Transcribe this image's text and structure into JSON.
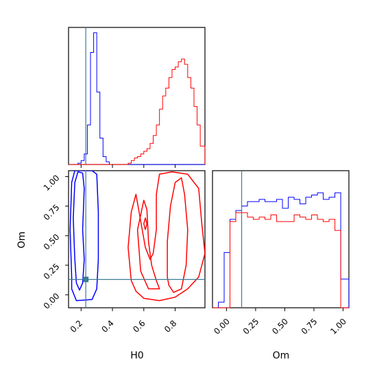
{
  "chart_data": {
    "type": "corner",
    "parameters": [
      "H0",
      "Om"
    ],
    "axis_labels": {
      "H0": "H0",
      "Om": "Om"
    },
    "truth": {
      "H0": 0.23,
      "Om": 0.13,
      "color": "#3b7b96"
    },
    "series": [
      {
        "color": "#0000ff"
      },
      {
        "color": "#ff0000"
      }
    ],
    "panels": [
      {
        "id": "hist-H0",
        "type": "histogram",
        "xlim": [
          0.12,
          0.99
        ],
        "x_ticks": [
          0.2,
          0.4,
          0.6,
          0.8
        ],
        "bin_edges": [
          0.12,
          0.14,
          0.16,
          0.18,
          0.2,
          0.22,
          0.24,
          0.26,
          0.28,
          0.3,
          0.32,
          0.34,
          0.36,
          0.38,
          0.4,
          0.42,
          0.44,
          0.46,
          0.48,
          0.5,
          0.52,
          0.54,
          0.56,
          0.58,
          0.6,
          0.62,
          0.64,
          0.66,
          0.68,
          0.7,
          0.72,
          0.74,
          0.76,
          0.78,
          0.8,
          0.82,
          0.84,
          0.86,
          0.88,
          0.9,
          0.92,
          0.94,
          0.96,
          0.98,
          0.99
        ],
        "counts": [
          [
            0,
            0,
            0,
            1,
            3,
            8,
            30,
            85,
            100,
            55,
            20,
            6,
            2,
            0,
            0,
            0,
            0,
            0,
            0,
            0,
            0,
            0,
            0,
            0,
            0,
            0,
            0,
            0,
            0,
            0,
            0,
            0,
            0,
            0,
            0,
            0,
            0,
            0,
            0,
            0,
            0,
            0,
            0,
            0
          ],
          [
            0,
            0,
            0,
            0,
            0,
            0,
            0,
            0,
            0,
            0,
            0,
            0,
            0,
            0,
            0,
            0,
            0,
            0,
            0,
            1,
            3,
            5,
            6,
            8,
            10,
            12,
            16,
            22,
            30,
            42,
            52,
            58,
            66,
            72,
            74,
            78,
            80,
            76,
            66,
            58,
            44,
            30,
            14,
            14
          ]
        ],
        "ymax": 104
      },
      {
        "id": "contour-H0-Om",
        "type": "contour",
        "xlim": [
          0.12,
          0.99
        ],
        "ylim": [
          -0.11,
          1.05
        ],
        "x_ticks": [
          0.2,
          0.4,
          0.6,
          0.8
        ],
        "y_ticks": [
          0.0,
          0.25,
          0.5,
          0.75,
          1.0
        ],
        "contours": [
          {
            "series": 0,
            "points": [
              [
                0.16,
                0.3
              ],
              [
                0.15,
                0.65
              ],
              [
                0.16,
                0.95
              ],
              [
                0.18,
                1.04
              ],
              [
                0.21,
                1.03
              ],
              [
                0.22,
                0.9
              ],
              [
                0.21,
                0.55
              ],
              [
                0.22,
                0.3
              ],
              [
                0.21,
                0.1
              ],
              [
                0.19,
                0.04
              ],
              [
                0.17,
                0.1
              ],
              [
                0.16,
                0.3
              ]
            ]
          },
          {
            "series": 0,
            "points": [
              [
                0.14,
                0.15
              ],
              [
                0.13,
                0.55
              ],
              [
                0.14,
                0.95
              ],
              [
                0.16,
                1.05
              ],
              [
                0.27,
                1.05
              ],
              [
                0.3,
                1.02
              ],
              [
                0.31,
                0.7
              ],
              [
                0.31,
                0.3
              ],
              [
                0.3,
                0.05
              ],
              [
                0.27,
                -0.04
              ],
              [
                0.17,
                -0.05
              ],
              [
                0.14,
                0.05
              ],
              [
                0.14,
                0.15
              ]
            ]
          },
          {
            "series": 1,
            "points": [
              [
                0.58,
                0.2
              ],
              [
                0.56,
                0.55
              ],
              [
                0.6,
                0.8
              ],
              [
                0.62,
                0.72
              ],
              [
                0.63,
                0.45
              ],
              [
                0.65,
                0.25
              ],
              [
                0.68,
                0.12
              ],
              [
                0.7,
                0.05
              ],
              [
                0.63,
                0.05
              ],
              [
                0.58,
                0.2
              ]
            ]
          },
          {
            "series": 1,
            "points": [
              [
                0.75,
                0.15
              ],
              [
                0.75,
                0.45
              ],
              [
                0.77,
                0.75
              ],
              [
                0.8,
                0.95
              ],
              [
                0.84,
                0.99
              ],
              [
                0.86,
                0.85
              ],
              [
                0.88,
                0.55
              ],
              [
                0.87,
                0.25
              ],
              [
                0.84,
                0.05
              ],
              [
                0.79,
                0.02
              ],
              [
                0.76,
                0.08
              ],
              [
                0.75,
                0.15
              ]
            ]
          },
          {
            "series": 1,
            "points": [
              [
                0.52,
                0.12
              ],
              [
                0.5,
                0.4
              ],
              [
                0.52,
                0.7
              ],
              [
                0.55,
                0.85
              ],
              [
                0.57,
                0.7
              ],
              [
                0.59,
                0.55
              ],
              [
                0.61,
                0.4
              ],
              [
                0.64,
                0.3
              ],
              [
                0.66,
                0.35
              ],
              [
                0.68,
                0.55
              ],
              [
                0.68,
                0.85
              ],
              [
                0.7,
                1.02
              ],
              [
                0.78,
                1.04
              ],
              [
                0.88,
                1.02
              ],
              [
                0.95,
                0.9
              ],
              [
                0.97,
                0.6
              ],
              [
                0.99,
                0.35
              ],
              [
                0.95,
                0.15
              ],
              [
                0.88,
                0.05
              ],
              [
                0.8,
                -0.02
              ],
              [
                0.7,
                -0.05
              ],
              [
                0.6,
                -0.03
              ],
              [
                0.55,
                0.03
              ],
              [
                0.52,
                0.12
              ]
            ]
          },
          {
            "series": 1,
            "points": [
              [
                0.61,
                0.55
              ],
              [
                0.62,
                0.6
              ],
              [
                0.61,
                0.65
              ],
              [
                0.6,
                0.6
              ],
              [
                0.61,
                0.55
              ]
            ]
          }
        ],
        "truth_marker": [
          0.23,
          0.13
        ]
      },
      {
        "id": "hist-Om",
        "type": "histogram",
        "xlim": [
          -0.12,
          1.05
        ],
        "x_ticks": [
          0.0,
          0.25,
          0.5,
          0.75,
          1.0
        ],
        "bin_edges": [
          -0.12,
          -0.07,
          -0.02,
          0.03,
          0.08,
          0.13,
          0.18,
          0.23,
          0.28,
          0.33,
          0.38,
          0.43,
          0.48,
          0.53,
          0.58,
          0.63,
          0.68,
          0.73,
          0.78,
          0.83,
          0.88,
          0.93,
          0.98,
          1.03,
          1.05
        ],
        "counts": [
          [
            0,
            5,
            50,
            80,
            88,
            92,
            96,
            96,
            98,
            96,
            96,
            98,
            90,
            100,
            98,
            94,
            100,
            102,
            104,
            98,
            100,
            104,
            26,
            26
          ],
          [
            0,
            0,
            0,
            78,
            86,
            86,
            82,
            80,
            82,
            80,
            84,
            78,
            78,
            78,
            84,
            82,
            80,
            84,
            80,
            78,
            80,
            70,
            0,
            0
          ]
        ],
        "ymax": 124
      }
    ]
  }
}
